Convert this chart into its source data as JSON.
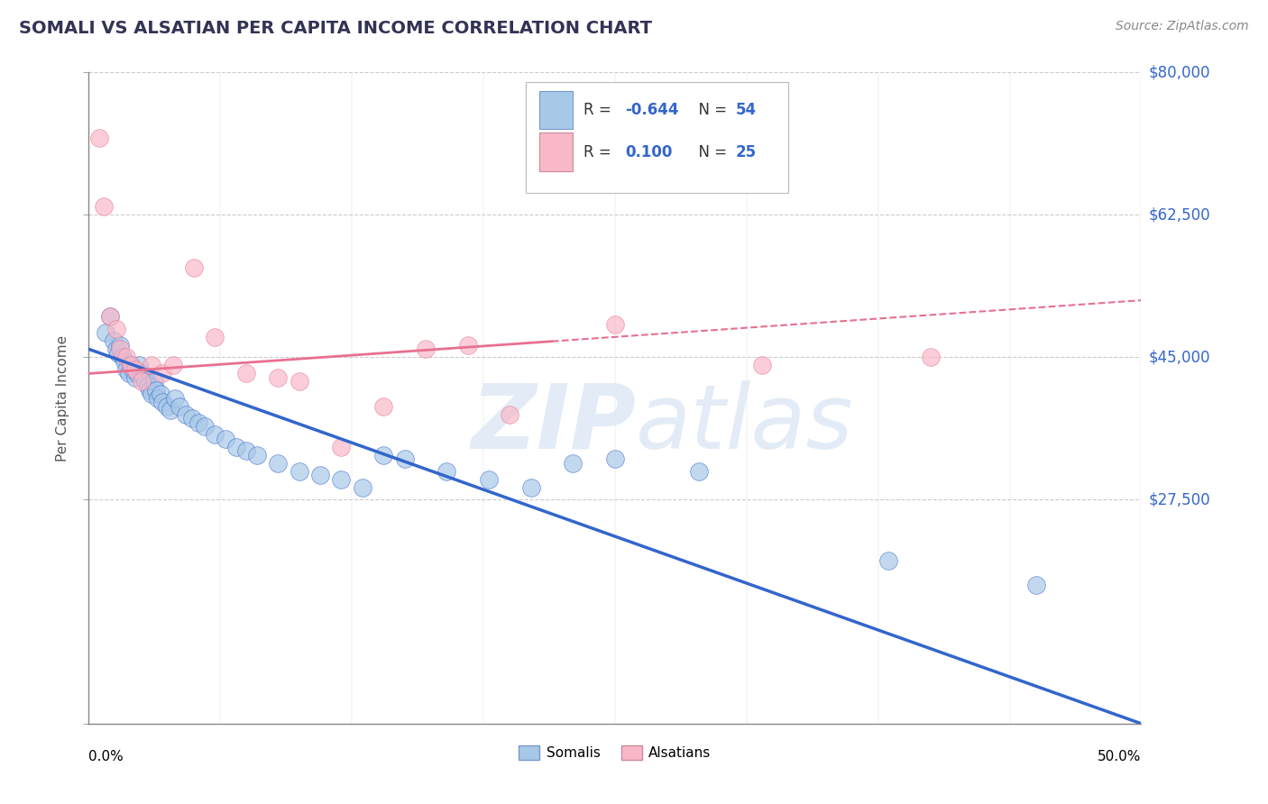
{
  "title": "SOMALI VS ALSATIAN PER CAPITA INCOME CORRELATION CHART",
  "source": "Source: ZipAtlas.com",
  "ylabel": "Per Capita Income",
  "xmin": 0.0,
  "xmax": 50.0,
  "ymin": 0,
  "ymax": 80000,
  "yticks": [
    0,
    27500,
    45000,
    62500,
    80000
  ],
  "ytick_labels": [
    "",
    "$27,500",
    "$45,000",
    "$62,500",
    "$80,000"
  ],
  "somali_color": "#a8c8e8",
  "alsatian_color": "#f8b8c8",
  "trendline_somali_color": "#3366cc",
  "trendline_alsatian_color": "#e87090",
  "legend_text_color": "#3366cc",
  "title_color": "#333355",
  "axis_label_color": "#3366cc",
  "somali_x": [
    0.8,
    1.0,
    1.2,
    1.3,
    1.4,
    1.5,
    1.6,
    1.7,
    1.8,
    1.9,
    2.0,
    2.1,
    2.2,
    2.3,
    2.4,
    2.5,
    2.6,
    2.7,
    2.8,
    2.9,
    3.0,
    3.1,
    3.2,
    3.3,
    3.4,
    3.5,
    3.7,
    3.9,
    4.1,
    4.3,
    4.6,
    4.9,
    5.2,
    5.5,
    6.0,
    6.5,
    7.0,
    7.5,
    8.0,
    9.0,
    10.0,
    11.0,
    12.0,
    13.0,
    14.0,
    15.0,
    17.0,
    19.0,
    21.0,
    23.0,
    25.0,
    29.0,
    38.0,
    45.0
  ],
  "somali_y": [
    48000,
    50000,
    47000,
    46000,
    45500,
    46500,
    45000,
    44500,
    43500,
    43000,
    44000,
    43500,
    42500,
    43000,
    44000,
    43000,
    42500,
    42000,
    41500,
    41000,
    40500,
    42000,
    41000,
    40000,
    40500,
    39500,
    39000,
    38500,
    40000,
    39000,
    38000,
    37500,
    37000,
    36500,
    35500,
    35000,
    34000,
    33500,
    33000,
    32000,
    31000,
    30500,
    30000,
    29000,
    33000,
    32500,
    31000,
    30000,
    29000,
    32000,
    32500,
    31000,
    20000,
    17000
  ],
  "alsatian_x": [
    0.5,
    0.7,
    1.0,
    1.3,
    1.5,
    1.8,
    2.0,
    2.2,
    2.5,
    3.0,
    3.5,
    4.0,
    5.0,
    6.0,
    7.5,
    9.0,
    10.0,
    12.0,
    14.0,
    16.0,
    18.0,
    20.0,
    25.0,
    32.0,
    40.0
  ],
  "alsatian_y": [
    72000,
    63500,
    50000,
    48500,
    46000,
    45000,
    44000,
    43500,
    42000,
    44000,
    43000,
    44000,
    56000,
    47500,
    43000,
    42500,
    42000,
    34000,
    39000,
    46000,
    46500,
    38000,
    49000,
    44000,
    45000
  ],
  "somali_trendline_x0": 0.0,
  "somali_trendline_x1": 50.0,
  "somali_trendline_y0": 46000,
  "somali_trendline_y1": 0,
  "alsatian_trendline_x0": 0.0,
  "alsatian_trendline_x1": 50.0,
  "alsatian_trendline_y0": 43000,
  "alsatian_trendline_y1": 52000,
  "alsatian_dash_start_x": 22.0
}
